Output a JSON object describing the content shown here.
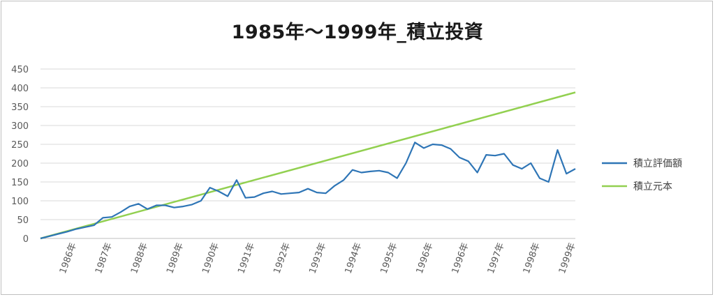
{
  "chart_data": {
    "type": "line",
    "title": "1985年～1999年_積立投資",
    "xlabel": "",
    "ylabel": "",
    "ylim": [
      0,
      450
    ],
    "yticks": [
      0,
      50,
      100,
      150,
      200,
      250,
      300,
      350,
      400,
      450
    ],
    "grid": "horizontal",
    "legend_position": "right",
    "x_tick_labels": [
      "1986年",
      "1987年",
      "1988年",
      "1989年",
      "1990年",
      "1991年",
      "1992年",
      "1993年",
      "1994年",
      "1995年",
      "1996年",
      "1996年",
      "1997年",
      "1998年",
      "1999年"
    ],
    "series": [
      {
        "name": "積立評価額",
        "color": "#2e75b6",
        "values": [
          0,
          6,
          12,
          18,
          25,
          30,
          35,
          55,
          57,
          70,
          85,
          92,
          78,
          88,
          88,
          82,
          85,
          90,
          100,
          135,
          125,
          112,
          155,
          108,
          110,
          120,
          125,
          118,
          120,
          122,
          132,
          122,
          120,
          140,
          155,
          182,
          175,
          178,
          180,
          175,
          160,
          200,
          255,
          240,
          250,
          248,
          238,
          215,
          205,
          175,
          222,
          220,
          225,
          195,
          185,
          200,
          160,
          150,
          235,
          172,
          185
        ]
      },
      {
        "name": "積立元本",
        "color": "#92d050",
        "values": [
          0,
          388
        ]
      }
    ]
  }
}
